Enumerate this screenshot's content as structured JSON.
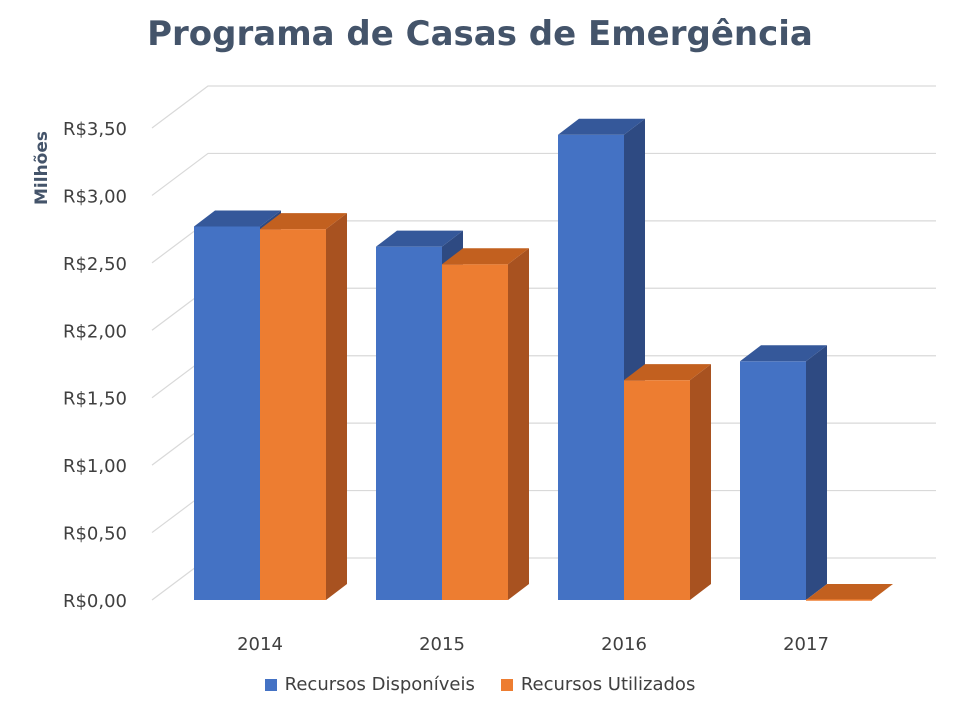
{
  "chart_data": {
    "type": "bar",
    "title": "Programa de Casas de Emergência",
    "ylabel": "Milhões",
    "categories": [
      "2014",
      "2015",
      "2016",
      "2017"
    ],
    "series": [
      {
        "name": "Recursos Disponíveis",
        "color": "#4472c4",
        "values": [
          2.77,
          2.62,
          3.45,
          1.77
        ]
      },
      {
        "name": "Recursos Utilizados",
        "color": "#ed7d31",
        "values": [
          2.75,
          2.49,
          1.63,
          0.0
        ]
      }
    ],
    "ylim": [
      0,
      3.5
    ],
    "yticks": [
      "R$0,00",
      "R$0,50",
      "R$1,00",
      "R$1,50",
      "R$2,00",
      "R$2,50",
      "R$3,00",
      "R$3,50"
    ],
    "grid": true,
    "legend": "bottom"
  },
  "colors": {
    "title": "#44546a",
    "grid": "#d9d9d9",
    "axis_text": "#404040"
  }
}
